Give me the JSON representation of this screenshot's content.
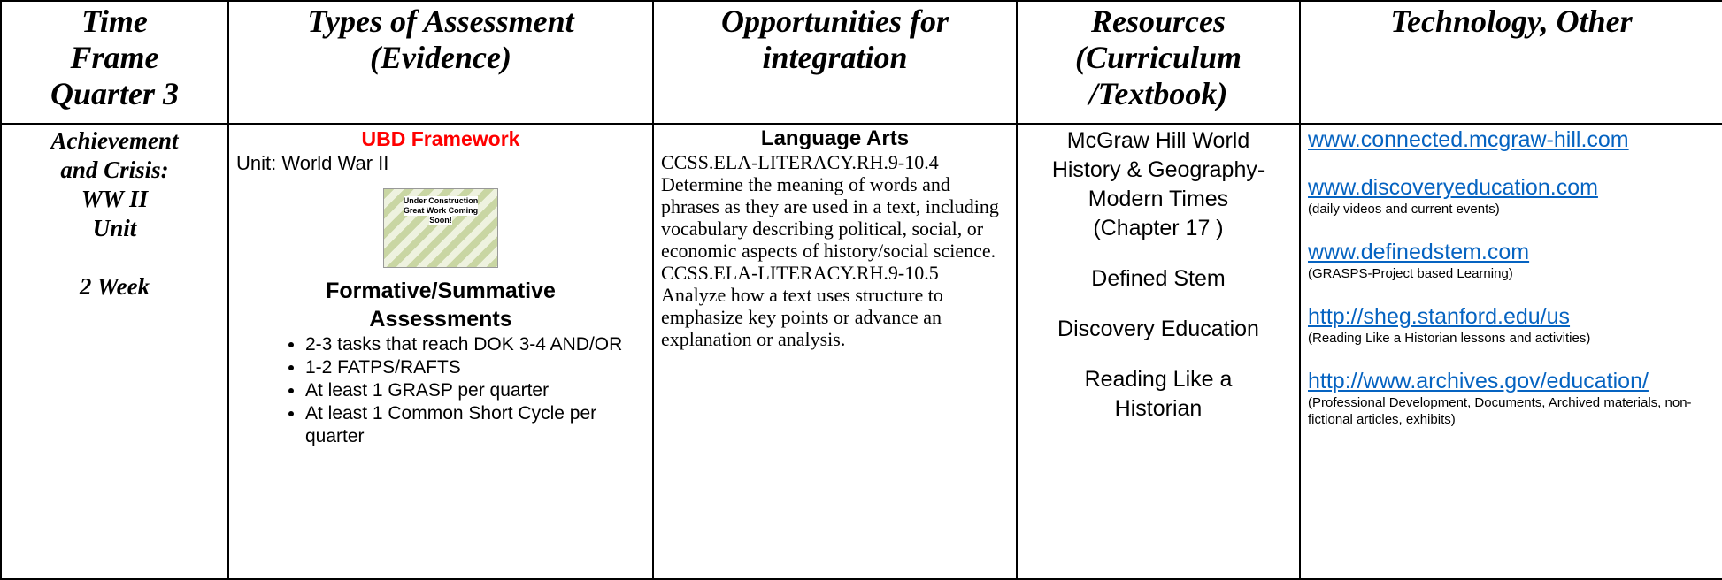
{
  "table": {
    "header": [
      [
        "Time",
        "Frame",
        "Quarter 3"
      ],
      [
        "Types of Assessment",
        "(Evidence)"
      ],
      [
        "Opportunities for",
        "integration"
      ],
      [
        "Resources",
        "(Curriculum",
        "/Textbook)"
      ],
      [
        "Technology, Other"
      ]
    ],
    "time_frame": {
      "lines": [
        "Achievement",
        "and Crisis:",
        "WW II",
        "Unit"
      ],
      "duration": "2 Week"
    },
    "assessment": {
      "heading": "UBD Framework",
      "unit": "Unit: World War II",
      "image_text": [
        "Under Construction",
        "Great Work Coming",
        "Soon!"
      ],
      "subheading": "Formative/Summative Assessments",
      "bullets": [
        "2-3 tasks that reach DOK 3-4 AND/OR",
        "1-2 FATPS/RAFTS",
        "At least 1 GRASP per quarter",
        "At least 1 Common Short Cycle per quarter"
      ]
    },
    "integration": {
      "heading": "Language Arts",
      "paragraphs": [
        "CCSS.ELA-LITERACY.RH.9-10.4",
        "Determine the meaning of words and phrases as they are used in a text, including vocabulary describing political, social, or economic aspects of history/social science.",
        "CCSS.ELA-LITERACY.RH.9-10.5",
        "Analyze how a text uses structure to emphasize key points or advance an explanation or analysis."
      ]
    },
    "resources": [
      "McGraw Hill World History & Geography- Modern Times (Chapter 17 )",
      "Defined Stem",
      "Discovery Education",
      "Reading Like a Historian"
    ],
    "technology": [
      {
        "url": "www.connected.mcgraw-hill.com"
      },
      {
        "url": "www.discoveryeducation.com",
        "note": "(daily videos and current events)"
      },
      {
        "url": "www.definedstem.com",
        "note": "(GRASPS-Project based Learning)"
      },
      {
        "url": "http://sheg.stanford.edu/us",
        "note": "(Reading Like a Historian lessons and activities)"
      },
      {
        "url": "http://www.archives.gov/education/",
        "note": "(Professional Development, Documents, Archived materials, non-fictional articles, exhibits)"
      }
    ]
  }
}
